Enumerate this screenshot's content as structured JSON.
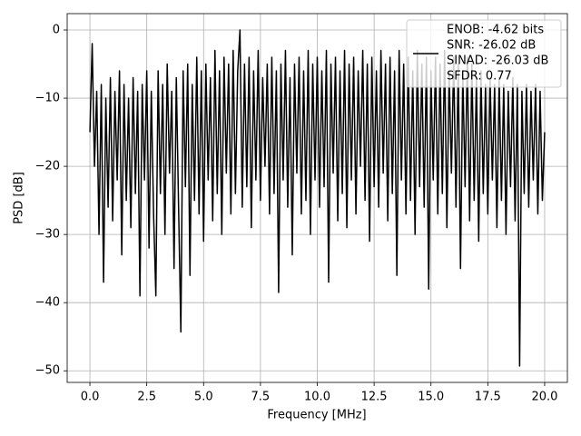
{
  "chart_data": {
    "type": "line",
    "x_label": "Frequency [MHz]",
    "y_label": "PSD [dB]",
    "xlim": [
      -1.0,
      21.0
    ],
    "ylim": [
      -51.7,
      2.4
    ],
    "xticks": [
      {
        "value": 0,
        "label": "0.0"
      },
      2.5,
      {
        "value": 5,
        "label": "5.0"
      },
      7.5,
      {
        "value": 10,
        "label": "10.0"
      },
      12.5,
      {
        "value": 15,
        "label": "15.0"
      },
      17.5,
      {
        "value": 20,
        "label": "20.0"
      }
    ],
    "yticks": [
      0,
      {
        "value": -10,
        "label": "−10"
      },
      {
        "value": -20,
        "label": "−20"
      },
      {
        "value": -30,
        "label": "−30"
      },
      {
        "value": -40,
        "label": "−40"
      },
      {
        "value": -50,
        "label": "−50"
      }
    ],
    "grid": true,
    "legend": "upper right",
    "x": [
      0,
      0.1,
      0.2,
      0.3,
      0.4,
      0.5,
      0.6,
      0.7,
      0.8,
      0.9,
      1,
      1.1,
      1.2,
      1.3,
      1.4,
      1.5,
      1.6,
      1.7,
      1.8,
      1.9,
      2,
      2.1,
      2.2,
      2.3,
      2.4,
      2.5,
      2.6,
      2.7,
      2.8,
      2.9,
      3,
      3.1,
      3.2,
      3.3,
      3.4,
      3.5,
      3.6,
      3.7,
      3.8,
      3.9,
      4,
      4.1,
      4.2,
      4.3,
      4.4,
      4.5,
      4.6,
      4.7,
      4.8,
      4.9,
      5,
      5.1,
      5.2,
      5.3,
      5.4,
      5.5,
      5.6,
      5.7,
      5.8,
      5.9,
      6,
      6.1,
      6.2,
      6.3,
      6.4,
      6.5,
      6.6,
      6.7,
      6.8,
      6.9,
      7,
      7.1,
      7.2,
      7.3,
      7.4,
      7.5,
      7.6,
      7.7,
      7.8,
      7.9,
      8,
      8.1,
      8.2,
      8.3,
      8.4,
      8.5,
      8.6,
      8.7,
      8.8,
      8.9,
      9,
      9.1,
      9.2,
      9.3,
      9.4,
      9.5,
      9.6,
      9.7,
      9.8,
      9.9,
      10,
      10.1,
      10.2,
      10.3,
      10.4,
      10.5,
      10.6,
      10.7,
      10.8,
      10.9,
      11,
      11.1,
      11.2,
      11.3,
      11.4,
      11.5,
      11.6,
      11.7,
      11.8,
      11.9,
      12,
      12.1,
      12.2,
      12.3,
      12.4,
      12.5,
      12.6,
      12.7,
      12.8,
      12.9,
      13,
      13.1,
      13.2,
      13.3,
      13.4,
      13.5,
      13.6,
      13.7,
      13.8,
      13.9,
      14,
      14.1,
      14.2,
      14.3,
      14.4,
      14.5,
      14.6,
      14.7,
      14.8,
      14.9,
      15,
      15.1,
      15.2,
      15.3,
      15.4,
      15.5,
      15.6,
      15.7,
      15.8,
      15.9,
      16,
      16.1,
      16.2,
      16.3,
      16.4,
      16.5,
      16.6,
      16.7,
      16.8,
      16.9,
      17,
      17.1,
      17.2,
      17.3,
      17.4,
      17.5,
      17.6,
      17.7,
      17.8,
      17.9,
      18,
      18.1,
      18.2,
      18.3,
      18.4,
      18.5,
      18.6,
      18.7,
      18.8,
      18.9,
      19,
      19.1,
      19.2,
      19.3,
      19.4,
      19.5,
      19.6,
      19.7,
      19.8,
      19.9,
      20
    ],
    "series": [
      {
        "name": [
          "ENOB: -4.62 bits",
          "SNR: -26.02 dB",
          "SINAD: -26.03 dB",
          "SFDR: 0.77"
        ],
        "color": "#000000",
        "values": [
          -15,
          -2,
          -20,
          -9,
          -30,
          -8,
          -37,
          -10,
          -26,
          -7,
          -28,
          -9,
          -22,
          -6,
          -33,
          -8,
          -25,
          -10,
          -29,
          -7,
          -24,
          -9,
          -39,
          -8,
          -22,
          -6,
          -32,
          -9,
          -27,
          -39,
          -6,
          -24,
          -8,
          -30,
          -5,
          -21,
          -9,
          -35,
          -7,
          -26,
          -44.3,
          -6,
          -23,
          -5,
          -36,
          -8,
          -25,
          -4,
          -27,
          -6,
          -31,
          -5,
          -22,
          -7,
          -28,
          -3,
          -24,
          -6,
          -30,
          -4,
          -21,
          -5,
          -27,
          -3,
          -24,
          -6,
          0,
          -26,
          -5,
          -23,
          -4,
          -29,
          -6,
          -22,
          -3,
          -25,
          -7,
          -20,
          -5,
          -27,
          -4,
          -24,
          -6,
          -38.5,
          -5,
          -22,
          -3,
          -26,
          -7,
          -33,
          -5,
          -21,
          -4,
          -27,
          -6,
          -25,
          -3,
          -30,
          -5,
          -22,
          -4,
          -26,
          -6,
          -23,
          -3,
          -37,
          -5,
          -21,
          -4,
          -28,
          -6,
          -24,
          -3,
          -29,
          -5,
          -22,
          -4,
          -27,
          -6,
          -20,
          -3,
          -25,
          -5,
          -31,
          -4,
          -23,
          -6,
          -26,
          -3,
          -21,
          -5,
          -28,
          -4,
          -24,
          -6,
          -36,
          -3,
          -22,
          -5,
          -27,
          -4,
          -25,
          -6,
          -30,
          -3,
          -23,
          -5,
          -26,
          -4,
          -38,
          -6,
          -22,
          -4,
          -27,
          -5,
          -24,
          -3,
          -29,
          -6,
          -21,
          -4,
          -26,
          -5,
          -35,
          -6,
          -23,
          -4,
          -28,
          -5,
          -25,
          -7,
          -31,
          -6,
          -24,
          -8,
          -27,
          -7,
          -22,
          -8,
          -29,
          -7,
          -25,
          -8,
          -30,
          -9,
          -23,
          -7,
          -28,
          -8,
          -49.3,
          -9,
          -24,
          -8,
          -26,
          -9,
          -22,
          -8,
          -27,
          -9,
          -25,
          -15
        ]
      }
    ]
  }
}
